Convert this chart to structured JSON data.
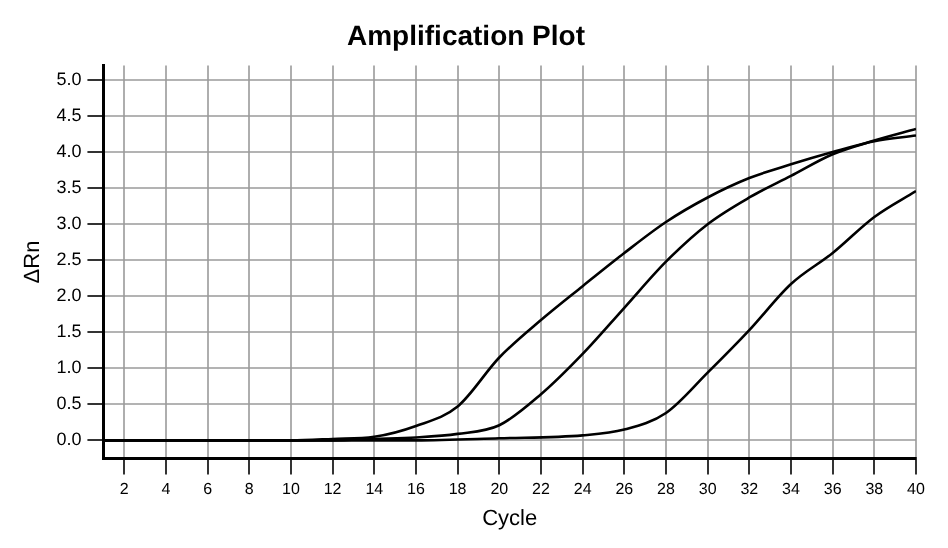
{
  "chart_data": {
    "type": "line",
    "title": "Amplification Plot",
    "xlabel": "Cycle",
    "ylabel": "ΔRn",
    "xlim": [
      1,
      40
    ],
    "ylim": [
      -0.25,
      5.2
    ],
    "xticks": [
      2,
      4,
      6,
      8,
      10,
      12,
      14,
      16,
      18,
      20,
      22,
      24,
      26,
      28,
      30,
      32,
      34,
      36,
      38,
      40
    ],
    "yticks": [
      {
        "value": 0,
        "label": "0.0"
      },
      {
        "value": 0.5,
        "label": "0.5"
      },
      {
        "value": 1,
        "label": "1.0"
      },
      {
        "value": 1.5,
        "label": "1.5"
      },
      {
        "value": 2,
        "label": "2.0"
      },
      {
        "value": 2.5,
        "label": "2.5"
      },
      {
        "value": 3,
        "label": "3.0"
      },
      {
        "value": 3.5,
        "label": "3.5"
      },
      {
        "value": 4,
        "label": "4.0"
      },
      {
        "value": 4.5,
        "label": "4.5"
      },
      {
        "value": 5,
        "label": "5.0"
      }
    ],
    "grid": true,
    "legend": false,
    "marker": "none",
    "line_style": "solid",
    "series": [
      {
        "color": "#000000",
        "x": [
          1,
          10,
          12,
          14,
          16,
          18,
          20,
          22,
          24,
          26,
          28,
          30,
          32,
          34,
          36,
          38,
          40
        ],
        "values": [
          0,
          0,
          0.02,
          0.05,
          0.2,
          0.47,
          1.15,
          1.67,
          2.14,
          2.6,
          3.03,
          3.37,
          3.64,
          3.83,
          4.0,
          4.15,
          4.23
        ]
      },
      {
        "color": "#000000",
        "x": [
          1,
          12,
          14,
          16,
          18,
          20,
          22,
          24,
          26,
          28,
          30,
          32,
          34,
          36,
          38,
          40
        ],
        "values": [
          0,
          0,
          0.02,
          0.04,
          0.09,
          0.21,
          0.64,
          1.2,
          1.84,
          2.48,
          3.0,
          3.37,
          3.67,
          3.97,
          4.16,
          4.32
        ]
      },
      {
        "color": "#000000",
        "x": [
          1,
          16,
          20,
          24,
          26,
          28,
          30,
          32,
          34,
          36,
          38,
          40
        ],
        "values": [
          0,
          0,
          0.03,
          0.07,
          0.15,
          0.38,
          0.94,
          1.53,
          2.17,
          2.6,
          3.1,
          3.46
        ]
      }
    ]
  }
}
